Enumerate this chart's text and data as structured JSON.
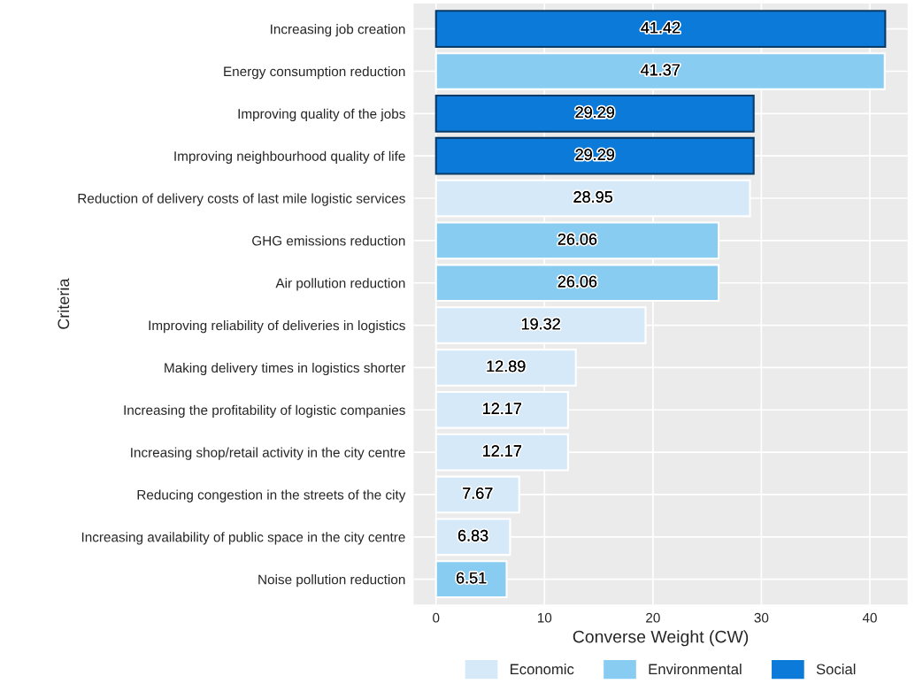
{
  "chart_data": {
    "type": "bar",
    "orientation": "horizontal",
    "xlabel": "Converse Weight (CW)",
    "ylabel": "Criteria",
    "categories": [
      "Increasing job creation",
      "Energy consumption reduction",
      "Improving quality of the jobs",
      "Improving neighbourhood quality of life",
      "Reduction of delivery costs of last mile logistic services",
      "GHG emissions reduction",
      "Air pollution reduction",
      "Improving reliability of deliveries in logistics",
      "Making delivery times in logistics shorter",
      "Increasing the profitability of logistic companies",
      "Increasing shop/retail activity in the city centre",
      "Reducing congestion in the streets of the city",
      "Increasing availability of public space in the city centre",
      "Noise pollution reduction"
    ],
    "series": [
      {
        "name": "Economic",
        "color": "#d6e9f9",
        "values": [
          null,
          null,
          null,
          null,
          28.95,
          null,
          null,
          19.32,
          12.89,
          12.17,
          12.17,
          7.67,
          6.83,
          null
        ]
      },
      {
        "name": "Environmental",
        "color": "#88cdf1",
        "values": [
          null,
          41.37,
          null,
          null,
          null,
          26.06,
          26.06,
          null,
          null,
          null,
          null,
          null,
          null,
          6.51
        ]
      },
      {
        "name": "Social",
        "color": "#0b7ad8",
        "values": [
          41.42,
          null,
          29.29,
          29.29,
          null,
          null,
          null,
          null,
          null,
          null,
          null,
          null,
          null,
          null
        ]
      }
    ],
    "xlim": [
      -2.07,
      43.49
    ],
    "xticks": [
      0,
      10,
      20,
      30,
      40
    ],
    "grid": true,
    "data_labels": true,
    "legend": "bottom"
  }
}
